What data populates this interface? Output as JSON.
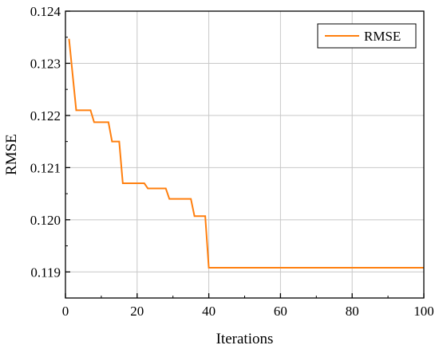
{
  "chart_data": {
    "type": "line",
    "xlabel": "Iterations",
    "ylabel": "RMSE",
    "xlim": [
      0,
      100
    ],
    "ylim": [
      0.1185,
      0.124
    ],
    "x_ticks": [
      0,
      20,
      40,
      60,
      80,
      100
    ],
    "y_ticks": [
      0.119,
      0.12,
      0.121,
      0.122,
      0.123,
      0.124
    ],
    "x_tick_labels": [
      "0",
      "20",
      "40",
      "60",
      "80",
      "100"
    ],
    "y_tick_labels": [
      "0.119",
      "0.120",
      "0.121",
      "0.122",
      "0.123",
      "0.124"
    ],
    "grid": true,
    "legend_position": "top-right",
    "series": [
      {
        "name": "RMSE",
        "color": "#FF7F0E",
        "x": [
          1,
          3,
          7,
          8,
          12,
          13,
          15,
          16,
          22,
          23,
          28,
          29,
          35,
          36,
          39,
          40,
          100
        ],
        "y": [
          0.12347,
          0.1221,
          0.1221,
          0.12187,
          0.12187,
          0.1215,
          0.1215,
          0.1207,
          0.1207,
          0.1206,
          0.1206,
          0.1204,
          0.1204,
          0.12007,
          0.12007,
          0.11908,
          0.11908
        ]
      }
    ]
  }
}
